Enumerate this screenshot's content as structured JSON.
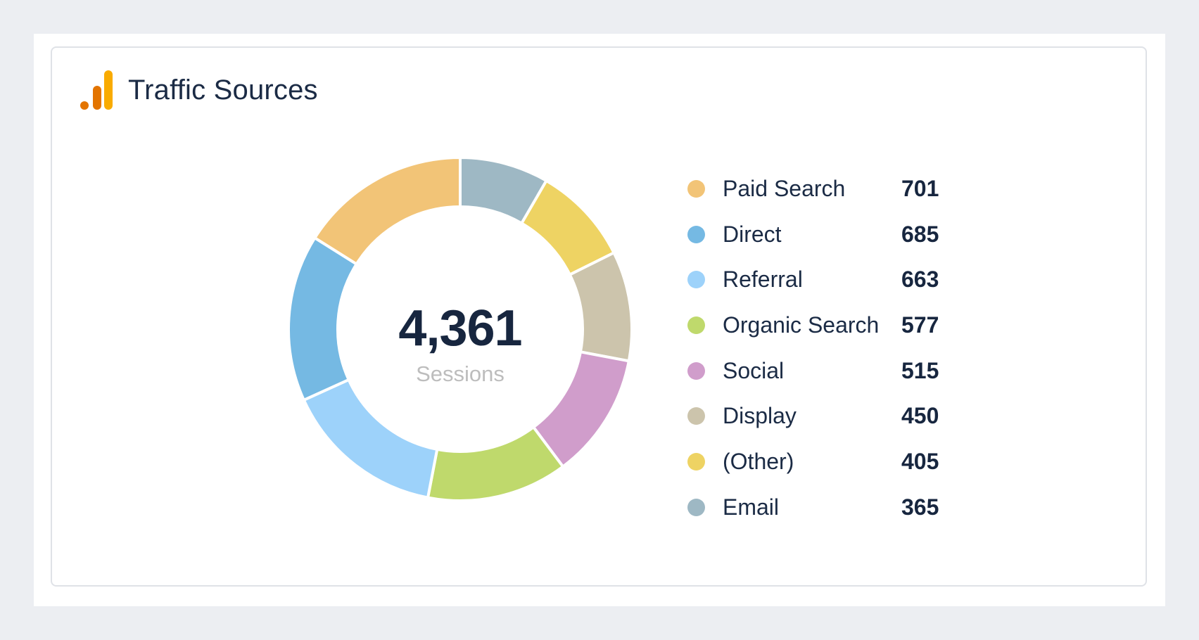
{
  "card": {
    "title": "Traffic Sources",
    "icon": "analytics-bars-icon",
    "icon_colors": [
      "#E37400",
      "#F9AB00"
    ]
  },
  "chart_data": {
    "type": "pie",
    "variant": "donut",
    "total": "4,361",
    "total_label": "Sessions",
    "legend_position": "right",
    "series": [
      {
        "name": "Paid Search",
        "value": 701,
        "color": "#F2C477"
      },
      {
        "name": "Direct",
        "value": 685,
        "color": "#75B9E3"
      },
      {
        "name": "Referral",
        "value": 663,
        "color": "#9DD2FA"
      },
      {
        "name": "Organic Search",
        "value": 577,
        "color": "#BFD96C"
      },
      {
        "name": "Social",
        "value": 515,
        "color": "#D09DCB"
      },
      {
        "name": "Display",
        "value": 450,
        "color": "#CCC4AC"
      },
      {
        "name": "(Other)",
        "value": 405,
        "color": "#EED363"
      },
      {
        "name": "Email",
        "value": 365,
        "color": "#9EB8C4"
      }
    ]
  }
}
